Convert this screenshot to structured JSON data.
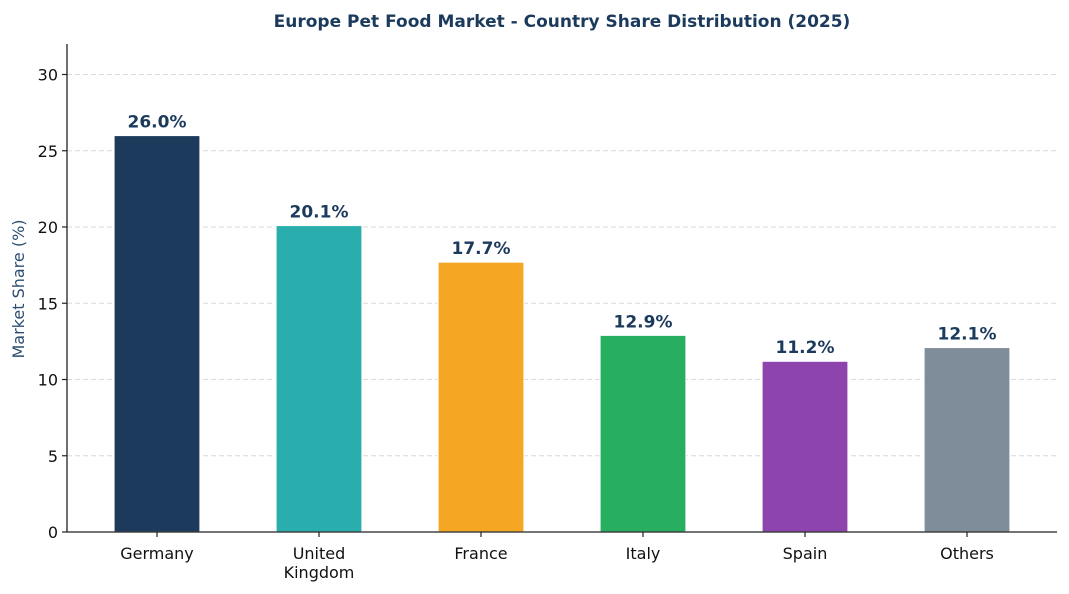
{
  "chart_data": {
    "type": "bar",
    "title": "Europe Pet Food Market - Country Share Distribution (2025)",
    "xlabel": "",
    "ylabel": "Market Share (%)",
    "categories": [
      "Germany",
      "United Kingdom",
      "France",
      "Italy",
      "Spain",
      "Others"
    ],
    "category_lines": [
      [
        "Germany"
      ],
      [
        "United",
        "Kingdom"
      ],
      [
        "France"
      ],
      [
        "Italy"
      ],
      [
        "Spain"
      ],
      [
        "Others"
      ]
    ],
    "values": [
      26.0,
      20.1,
      17.7,
      12.9,
      11.2,
      12.1
    ],
    "data_labels": [
      "26.0%",
      "20.1%",
      "17.7%",
      "12.9%",
      "11.2%",
      "12.1%"
    ],
    "colors": [
      "#1b3a5c",
      "#2aadad",
      "#f5a623",
      "#27ae60",
      "#8e44ad",
      "#7f8c99"
    ],
    "ylim": [
      0,
      32
    ],
    "yticks": [
      0,
      5,
      10,
      15,
      20,
      25,
      30
    ],
    "grid": "y-dashed",
    "legend": "none"
  }
}
